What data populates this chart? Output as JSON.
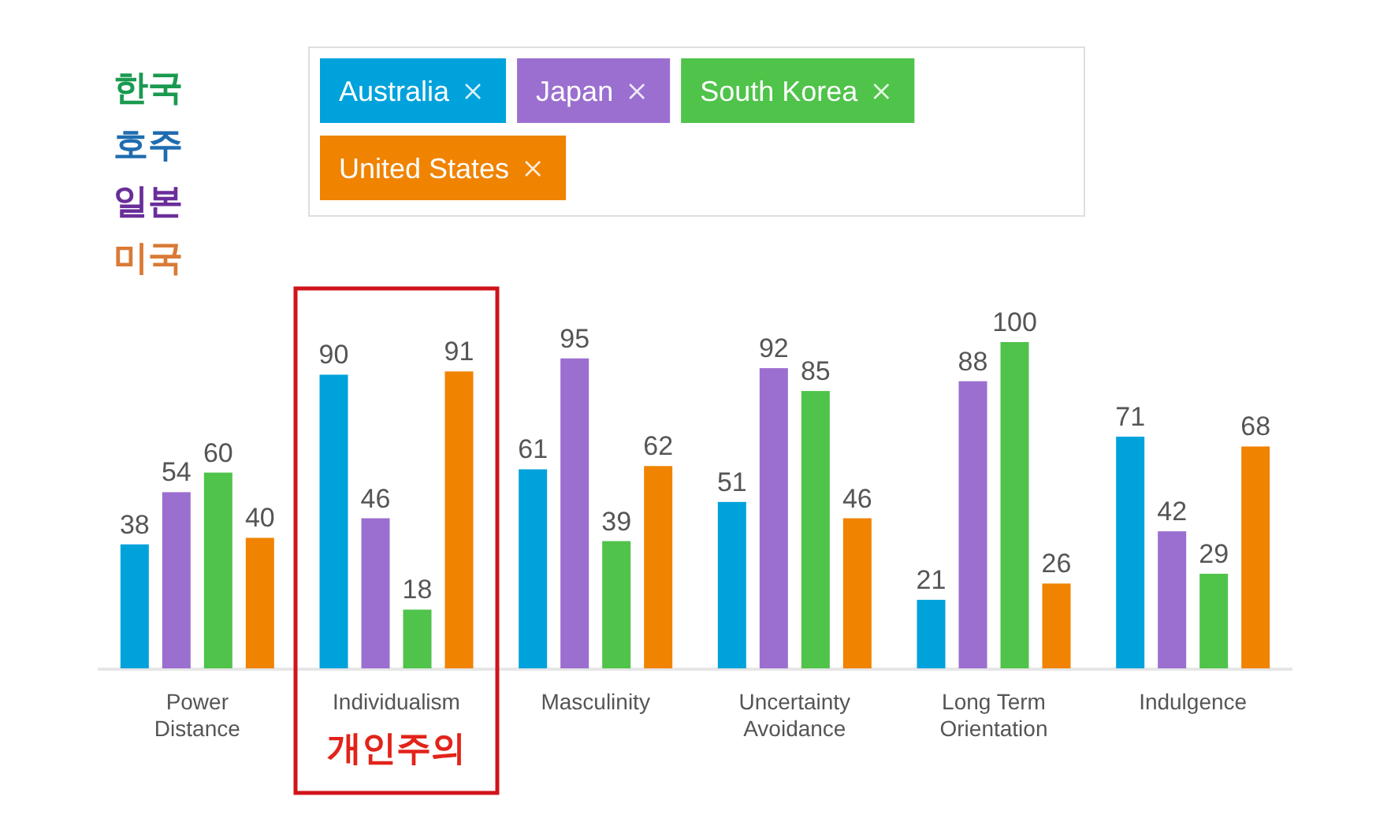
{
  "chart_data": {
    "type": "bar",
    "categories": [
      "Power\nDistance",
      "Individualism",
      "Masculinity",
      "Uncertainty\nAvoidance",
      "Long Term\nOrientation",
      "Indulgence"
    ],
    "series": [
      {
        "name": "Australia",
        "color": "#00a2dc",
        "values": [
          38,
          90,
          61,
          51,
          21,
          71
        ]
      },
      {
        "name": "Japan",
        "color": "#9b6fd0",
        "values": [
          54,
          46,
          95,
          92,
          88,
          42
        ]
      },
      {
        "name": "South Korea",
        "color": "#4fc34a",
        "values": [
          60,
          18,
          39,
          85,
          100,
          29
        ]
      },
      {
        "name": "United States",
        "color": "#f08300",
        "values": [
          40,
          91,
          62,
          46,
          26,
          68
        ]
      }
    ],
    "data_labels": true,
    "legend": "top",
    "annotations": [
      "한국",
      "호주",
      "일본",
      "미국",
      "개인주의"
    ]
  }
}
